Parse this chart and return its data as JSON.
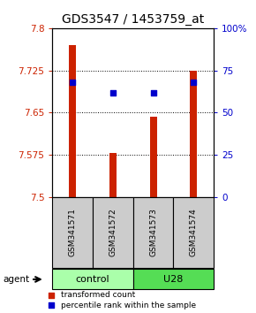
{
  "title": "GDS3547 / 1453759_at",
  "samples": [
    "GSM341571",
    "GSM341572",
    "GSM341573",
    "GSM341574"
  ],
  "bar_values": [
    7.77,
    7.578,
    7.643,
    7.725
  ],
  "percentile_values": [
    68,
    62,
    62,
    68
  ],
  "ymin": 7.5,
  "ymax": 7.8,
  "yticks": [
    7.5,
    7.575,
    7.65,
    7.725,
    7.8
  ],
  "right_yticks": [
    0,
    25,
    50,
    75,
    100
  ],
  "bar_color": "#cc2200",
  "dot_color": "#0000cc",
  "bar_width": 0.18,
  "groups": [
    {
      "label": "control",
      "samples": [
        0,
        1
      ],
      "color": "#aaffaa"
    },
    {
      "label": "U28",
      "samples": [
        2,
        3
      ],
      "color": "#55dd55"
    }
  ],
  "sample_box_color": "#cccccc",
  "legend_bar_label": "transformed count",
  "legend_dot_label": "percentile rank within the sample",
  "title_fontsize": 10,
  "tick_fontsize": 7.5,
  "label_fontsize": 7.5,
  "group_fontsize": 8
}
